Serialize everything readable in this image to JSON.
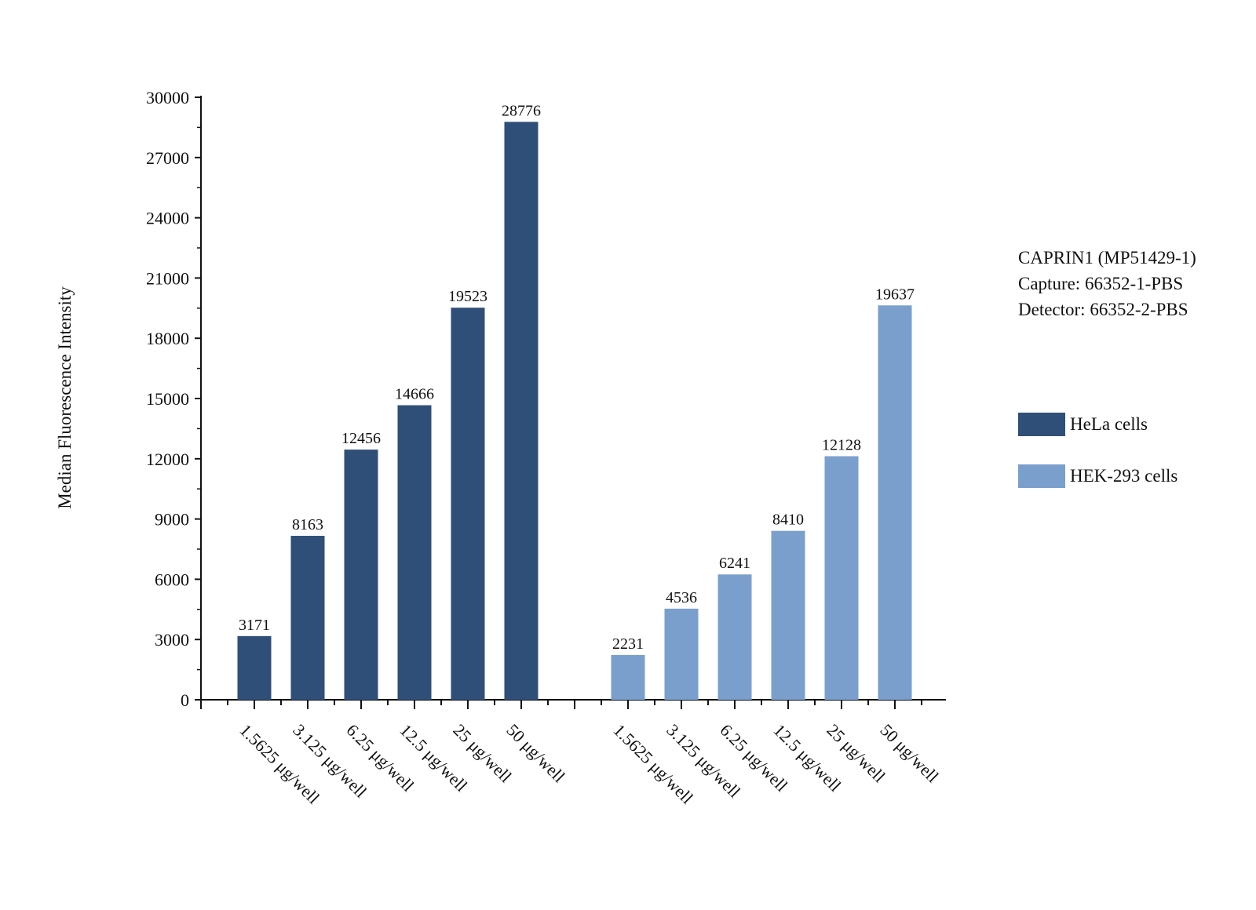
{
  "chart_data": {
    "type": "bar",
    "title": "",
    "xlabel": "",
    "ylabel": "Median Fluorescence Intensity",
    "ylim": [
      0,
      30000
    ],
    "yticks": [
      0,
      3000,
      6000,
      9000,
      12000,
      15000,
      18000,
      21000,
      24000,
      27000,
      30000
    ],
    "categories": [
      "1.5625 μg/well",
      "3.125 μg/well",
      "6.25 μg/well",
      "12.5 μg/well",
      "25 μg/well",
      "50 μg/well"
    ],
    "series": [
      {
        "name": "HeLa cells",
        "color": "#2f4f78",
        "values": [
          3171,
          8163,
          12456,
          14666,
          19523,
          28776
        ]
      },
      {
        "name": "HEK-293 cells",
        "color": "#7b9fcd",
        "values": [
          2231,
          4536,
          6241,
          8410,
          12128,
          19637
        ]
      }
    ],
    "annotation": [
      "CAPRIN1 (MP51429-1)",
      "Capture: 66352-1-PBS",
      "Detector: 66352-2-PBS"
    ],
    "legend_position": "right",
    "grid": false
  }
}
